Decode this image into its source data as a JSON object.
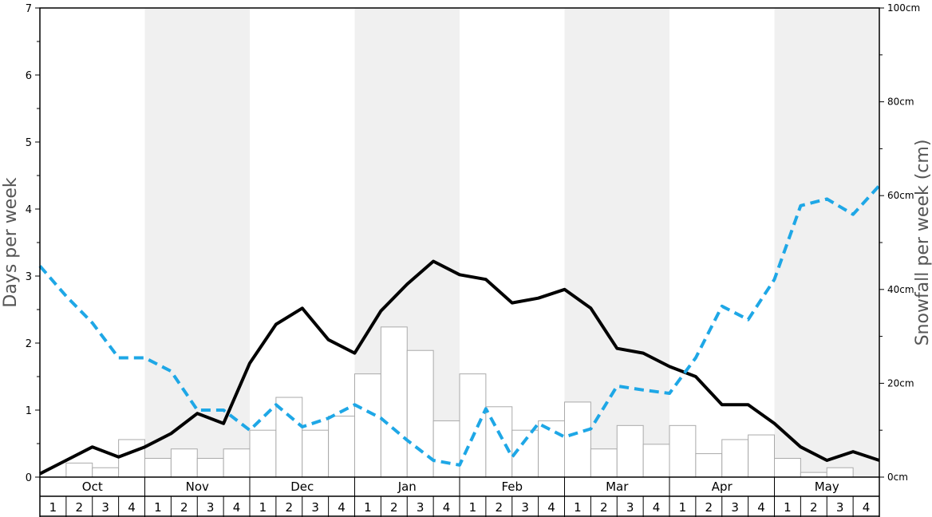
{
  "chart_data": {
    "type": "bar",
    "y_left_label": "Days per week",
    "y_right_label": "Snowfall per week (cm)",
    "y_left_range": [
      0,
      7
    ],
    "y_left_ticks": [
      "0",
      "1",
      "2",
      "3",
      "4",
      "5",
      "6",
      "7"
    ],
    "y_right_range": [
      0,
      100
    ],
    "y_right_ticks": [
      "0cm",
      "20cm",
      "40cm",
      "60cm",
      "80cm",
      "100cm"
    ],
    "months": [
      "Oct",
      "Nov",
      "Dec",
      "Jan",
      "Feb",
      "Mar",
      "Apr",
      "May"
    ],
    "week_labels": [
      "1",
      "2",
      "3",
      "4"
    ],
    "colors": {
      "snowfall_bars": "#ffffff",
      "bar_border": "#aaaaaa",
      "solid_line": "#000000",
      "dashed_line": "#1ea7e6",
      "shade": "#f0f0f0"
    },
    "series": [
      {
        "type": "bar",
        "axis": "right",
        "values": [
          0,
          3,
          2,
          8,
          4,
          6,
          4,
          6,
          10,
          17,
          10,
          13,
          22,
          32,
          27,
          12,
          22,
          15,
          10,
          12,
          16,
          6,
          11,
          7,
          11,
          5,
          8,
          9,
          4,
          1,
          2,
          0
        ]
      },
      {
        "type": "line",
        "style": "solid",
        "axis": "left",
        "values": [
          0.05,
          0.25,
          0.45,
          0.3,
          0.45,
          0.65,
          0.95,
          0.8,
          1.7,
          2.28,
          2.52,
          2.05,
          1.85,
          2.48,
          2.88,
          3.22,
          3.02,
          2.95,
          2.6,
          2.67,
          2.8,
          2.52,
          1.92,
          1.85,
          1.65,
          1.5,
          1.08,
          1.08,
          0.8,
          0.45,
          0.25,
          0.38,
          0.25
        ]
      },
      {
        "type": "line",
        "style": "dashed",
        "axis": "left",
        "values": [
          3.15,
          2.7,
          2.3,
          1.78,
          1.78,
          1.58,
          1.0,
          1.0,
          0.7,
          1.08,
          0.75,
          0.88,
          1.08,
          0.88,
          0.55,
          0.25,
          0.18,
          1.02,
          0.3,
          0.8,
          0.6,
          0.72,
          1.36,
          1.3,
          1.25,
          1.78,
          2.55,
          2.35,
          2.95,
          4.05,
          4.15,
          3.92,
          4.35
        ]
      }
    ]
  }
}
